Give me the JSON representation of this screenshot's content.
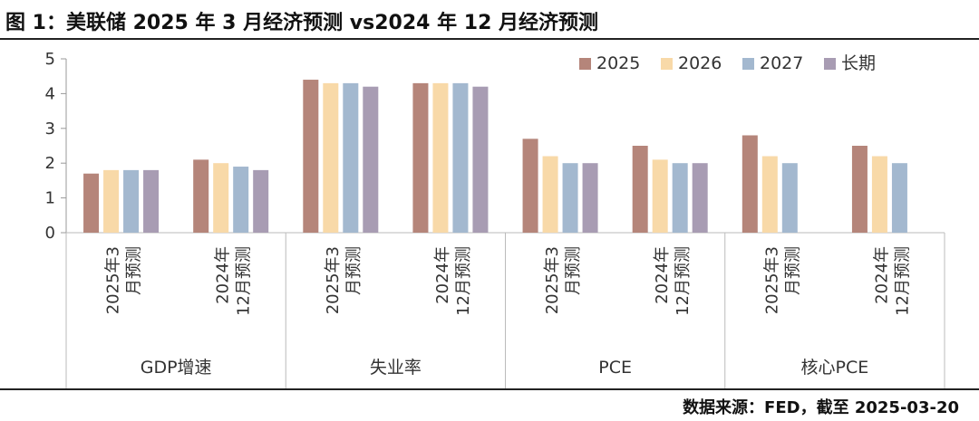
{
  "header": {
    "title": "图 1：美联储 2025 年 3 月经济预测 vs2024 年 12 月经济预测"
  },
  "footer": {
    "source": "数据来源：FED，截至 2025-03-20"
  },
  "chart_data": {
    "type": "bar",
    "title": "美联储 2025 年 3 月经济预测 vs2024 年 12 月经济预测",
    "xlabel": "",
    "ylabel": "",
    "ylim": [
      0,
      5
    ],
    "yticks": [
      0,
      1,
      2,
      3,
      4,
      5
    ],
    "grid": false,
    "legend_position": "top-right",
    "groups": [
      {
        "name": "GDP增速",
        "categories": [
          {
            "l1": "2025年3",
            "l2": "月预测"
          },
          {
            "l1": "2024年",
            "l2": "12月预测"
          }
        ]
      },
      {
        "name": "失业率",
        "categories": [
          {
            "l1": "2025年3",
            "l2": "月预测"
          },
          {
            "l1": "2024年",
            "l2": "12月预测"
          }
        ]
      },
      {
        "name": "PCE",
        "categories": [
          {
            "l1": "2025年3",
            "l2": "月预测"
          },
          {
            "l1": "2024年",
            "l2": "12月预测"
          }
        ]
      },
      {
        "name": "核心PCE",
        "categories": [
          {
            "l1": "2025年3",
            "l2": "月预测"
          },
          {
            "l1": "2024年",
            "l2": "12月预测"
          }
        ]
      }
    ],
    "series": [
      {
        "name": "2025",
        "color": "#b5857a",
        "values": [
          1.7,
          2.1,
          4.4,
          4.3,
          2.7,
          2.5,
          2.8,
          2.5
        ]
      },
      {
        "name": "2026",
        "color": "#f8d9a8",
        "values": [
          1.8,
          2.0,
          4.3,
          4.3,
          2.2,
          2.1,
          2.2,
          2.2
        ]
      },
      {
        "name": "2027",
        "color": "#a3b8cf",
        "values": [
          1.8,
          1.9,
          4.3,
          4.3,
          2.0,
          2.0,
          2.0,
          2.0
        ]
      },
      {
        "name": "长期",
        "color": "#a89cb3",
        "values": [
          1.8,
          1.8,
          4.2,
          4.2,
          2.0,
          2.0,
          null,
          null
        ]
      }
    ]
  }
}
